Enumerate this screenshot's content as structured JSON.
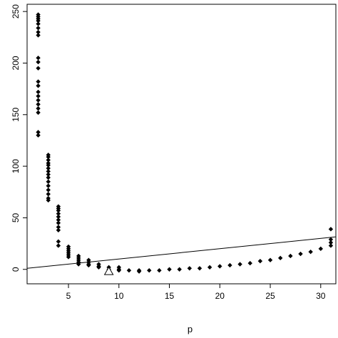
{
  "chart_data": {
    "type": "scatter",
    "title": "",
    "xlabel": "p",
    "ylabel": "",
    "xlim": [
      0.9,
      31.5
    ],
    "ylim": [
      -14,
      257
    ],
    "grid": false,
    "xticks": [
      5,
      10,
      15,
      20,
      25,
      30
    ],
    "yticks": [
      0,
      50,
      100,
      150,
      200,
      250
    ],
    "point_groups": [
      {
        "x": 2,
        "y": [
          247,
          245,
          243,
          241,
          238,
          234,
          230,
          227,
          205,
          201,
          195,
          182,
          178,
          172,
          168,
          164,
          160,
          156,
          152,
          133,
          130
        ]
      },
      {
        "x": 3,
        "y": [
          111,
          109,
          106,
          103,
          101,
          98,
          95,
          92,
          89,
          85,
          81,
          77,
          73,
          69,
          67
        ]
      },
      {
        "x": 4,
        "y": [
          61,
          59,
          57,
          54,
          51,
          48,
          45,
          41,
          38,
          27,
          23
        ]
      },
      {
        "x": 5,
        "y": [
          22,
          20,
          18,
          16,
          14,
          12
        ]
      },
      {
        "x": 6,
        "y": [
          13,
          11,
          9,
          7,
          5
        ]
      },
      {
        "x": 7,
        "y": [
          9,
          7,
          5,
          4
        ]
      },
      {
        "x": 8,
        "y": [
          5,
          3,
          2
        ]
      },
      {
        "x": 9,
        "y": [
          2,
          0
        ]
      },
      {
        "x": 10,
        "y": [
          2,
          0,
          -1
        ]
      },
      {
        "x": 11,
        "y": [
          -1
        ]
      },
      {
        "x": 12,
        "y": [
          -1,
          -2
        ]
      },
      {
        "x": 13,
        "y": [
          -1
        ]
      },
      {
        "x": 14,
        "y": [
          -1
        ]
      },
      {
        "x": 15,
        "y": [
          0
        ]
      },
      {
        "x": 16,
        "y": [
          0
        ]
      },
      {
        "x": 17,
        "y": [
          1
        ]
      },
      {
        "x": 18,
        "y": [
          1
        ]
      },
      {
        "x": 19,
        "y": [
          2
        ]
      },
      {
        "x": 20,
        "y": [
          3
        ]
      },
      {
        "x": 21,
        "y": [
          4
        ]
      },
      {
        "x": 22,
        "y": [
          5
        ]
      },
      {
        "x": 23,
        "y": [
          6
        ]
      },
      {
        "x": 24,
        "y": [
          8
        ]
      },
      {
        "x": 25,
        "y": [
          9
        ]
      },
      {
        "x": 26,
        "y": [
          11
        ]
      },
      {
        "x": 27,
        "y": [
          13
        ]
      },
      {
        "x": 28,
        "y": [
          15
        ]
      },
      {
        "x": 29,
        "y": [
          17
        ]
      },
      {
        "x": 30,
        "y": [
          20
        ]
      },
      {
        "x": 31,
        "y": [
          39,
          29,
          26,
          23
        ]
      }
    ],
    "marker": {
      "x": 9,
      "y": -2,
      "shape": "open-triangle"
    },
    "line": {
      "x": [
        0.9,
        31.5
      ],
      "y": [
        1,
        31.5
      ]
    },
    "colors": {
      "points": "#000000",
      "line": "#000000",
      "axes": "#000000"
    }
  }
}
